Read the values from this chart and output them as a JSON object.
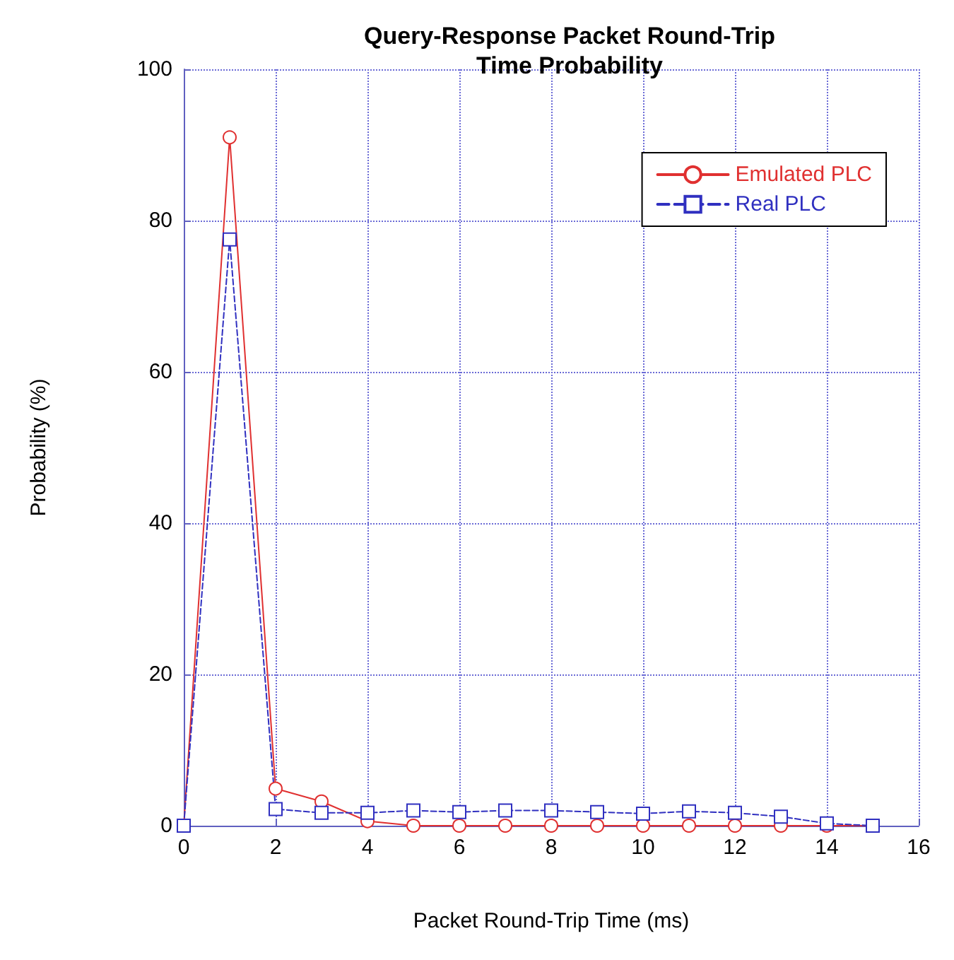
{
  "chart_data": {
    "type": "line",
    "title": "Query-Response Packet Round-Trip\nTime Probability",
    "xlabel": "Packet Round-Trip Time (ms)",
    "ylabel": "Probability (%)",
    "x": [
      0,
      1,
      2,
      3,
      4,
      5,
      6,
      7,
      8,
      9,
      10,
      11,
      12,
      13,
      14,
      15
    ],
    "series": [
      {
        "name": "Emulated PLC",
        "color": "#e03030",
        "marker": "circle",
        "line_style": "solid",
        "values": [
          0,
          91,
          4.9,
          3.2,
          0.6,
          0,
          0,
          0,
          0,
          0,
          0,
          0,
          0,
          0,
          0,
          0
        ]
      },
      {
        "name": "Real PLC",
        "color": "#3030c0",
        "marker": "square",
        "line_style": "dashed",
        "values": [
          0,
          77.5,
          2.2,
          1.7,
          1.7,
          2.0,
          1.8,
          2.0,
          2.0,
          1.8,
          1.6,
          1.9,
          1.7,
          1.2,
          0.3,
          0
        ]
      }
    ],
    "xlim": [
      0,
      16
    ],
    "xticks": [
      0,
      2,
      4,
      6,
      8,
      10,
      12,
      14,
      16
    ],
    "ylim": [
      0,
      100
    ],
    "yticks": [
      0,
      20,
      40,
      60,
      80,
      100
    ],
    "grid": true,
    "legend": "top right"
  }
}
